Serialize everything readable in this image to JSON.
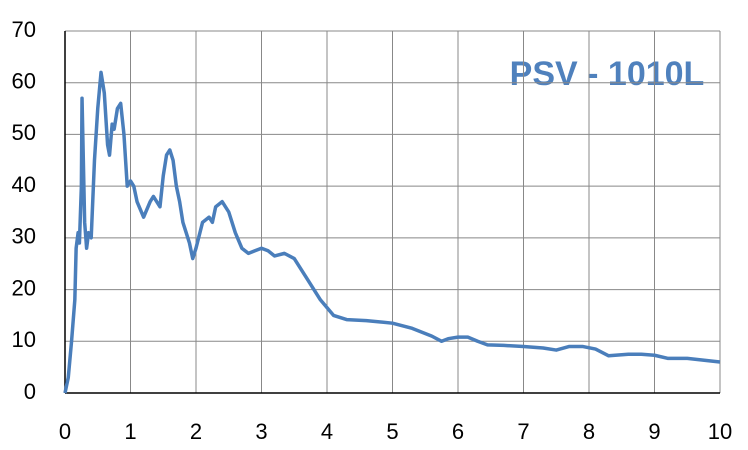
{
  "chart_data": {
    "type": "line",
    "title": "PSV - 1010L",
    "x": [
      0,
      0.05,
      0.1,
      0.15,
      0.17,
      0.2,
      0.22,
      0.25,
      0.26,
      0.28,
      0.3,
      0.33,
      0.36,
      0.4,
      0.45,
      0.5,
      0.55,
      0.6,
      0.65,
      0.68,
      0.72,
      0.75,
      0.8,
      0.85,
      0.9,
      0.95,
      1.0,
      1.05,
      1.1,
      1.2,
      1.3,
      1.35,
      1.45,
      1.5,
      1.55,
      1.6,
      1.65,
      1.7,
      1.75,
      1.8,
      1.85,
      1.9,
      1.95,
      2.0,
      2.1,
      2.2,
      2.25,
      2.3,
      2.4,
      2.5,
      2.6,
      2.7,
      2.8,
      2.9,
      3.0,
      3.1,
      3.2,
      3.35,
      3.5,
      3.7,
      3.9,
      4.1,
      4.3,
      4.6,
      5.0,
      5.3,
      5.6,
      5.75,
      5.85,
      6.0,
      6.15,
      6.3,
      6.45,
      6.7,
      7.0,
      7.3,
      7.5,
      7.7,
      7.9,
      8.1,
      8.3,
      8.6,
      8.8,
      9.0,
      9.2,
      9.5,
      10
    ],
    "series": [
      {
        "color": "#4a7ebb",
        "values": [
          0,
          3,
          10,
          18,
          28,
          31,
          29,
          40,
          57,
          45,
          33,
          28,
          31,
          30,
          45,
          55,
          62,
          58,
          48,
          46,
          52,
          51,
          55,
          56,
          50,
          40,
          41,
          40,
          37,
          34,
          37,
          38,
          36,
          42,
          46,
          47,
          45,
          40,
          37,
          33,
          31,
          29,
          26,
          28,
          33,
          34,
          33,
          36,
          37,
          35,
          31,
          28,
          27,
          27.5,
          28,
          27.5,
          26.5,
          27,
          26,
          22,
          18,
          15,
          14.2,
          14,
          13.5,
          12.5,
          11,
          10,
          10.5,
          10.8,
          10.8,
          10,
          9.3,
          9.2,
          9,
          8.7,
          8.3,
          9,
          9,
          8.5,
          7.2,
          7.5,
          7.5,
          7.3,
          6.7,
          6.7,
          6
        ]
      }
    ],
    "xlim": [
      0,
      10
    ],
    "xticks": [
      0,
      1,
      2,
      3,
      4,
      5,
      6,
      7,
      8,
      9,
      10
    ],
    "ylim": [
      0,
      70
    ],
    "yticks": [
      0,
      10,
      20,
      30,
      40,
      50,
      60,
      70
    ],
    "grid": true
  }
}
